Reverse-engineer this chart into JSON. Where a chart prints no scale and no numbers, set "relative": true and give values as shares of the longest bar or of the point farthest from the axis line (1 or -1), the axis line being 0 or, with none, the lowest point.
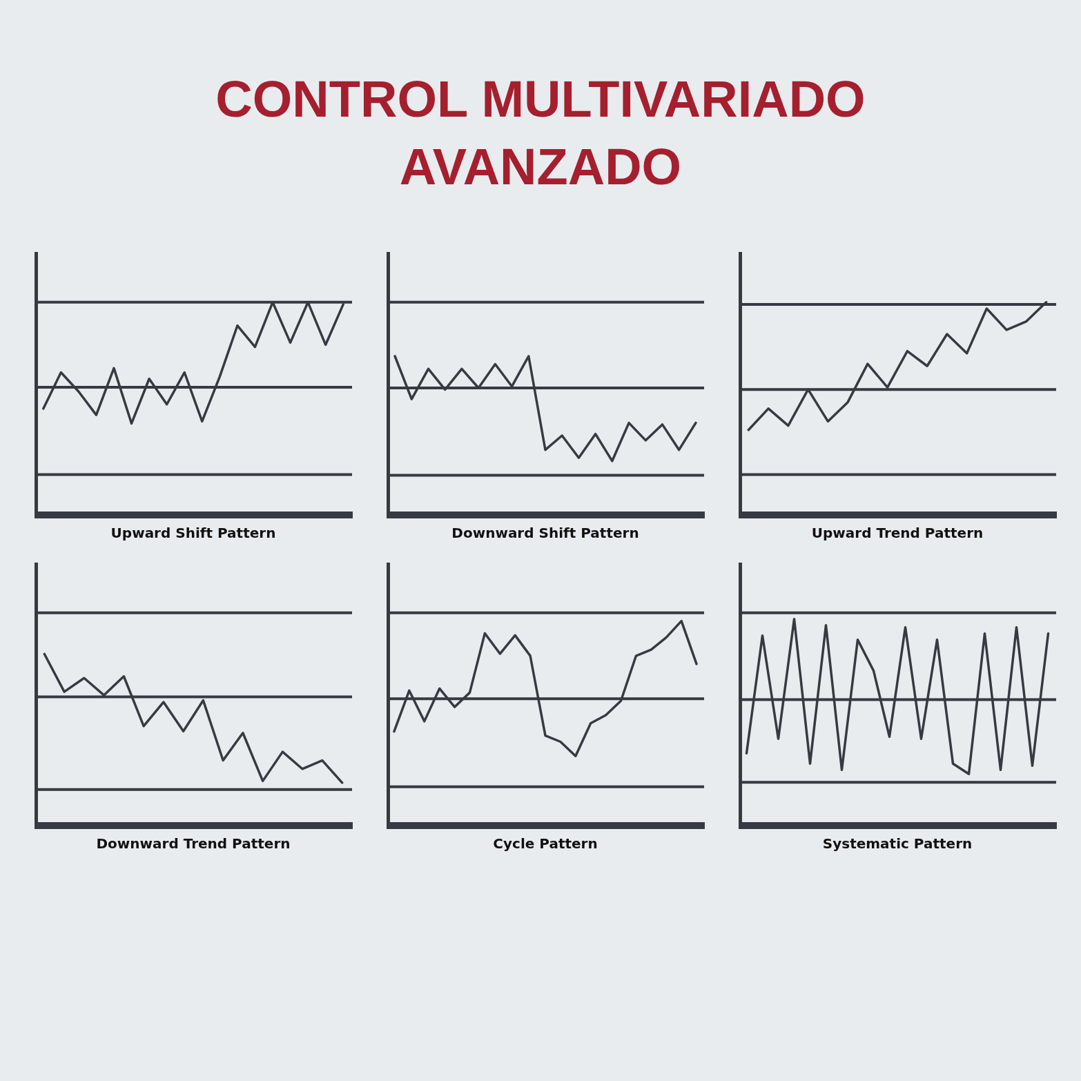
{
  "chart_data": [
    {
      "type": "line",
      "title": "CONTROL MULTIVARIADO AVANZADO",
      "xlabel": "Upward Shift Pattern",
      "relative": true,
      "categories": [
        null,
        null,
        null,
        null,
        null,
        null,
        null,
        null,
        null,
        null,
        null,
        null,
        null,
        null,
        null,
        null,
        null,
        null
      ],
      "series": [
        {
          "color": "#363a42",
          "values": [
            0.5,
            0.67,
            0.58,
            0.47,
            0.69,
            0.43,
            0.64,
            0.52,
            0.67,
            0.44,
            0.65,
            0.89,
            0.79,
            1.0,
            0.81,
            1.0,
            0.8,
            0.99
          ]
        }
      ],
      "ref_lines": [
        {
          "axis": "y",
          "value": 1.0,
          "color": "#363a42"
        },
        {
          "axis": "y",
          "value": 0.6,
          "color": "#363a42"
        },
        {
          "axis": "y",
          "value": 0.19,
          "color": "#363a42"
        }
      ]
    },
    {
      "type": "line",
      "xlabel": "Downward Shift Pattern",
      "relative": true,
      "categories": [
        null,
        null,
        null,
        null,
        null,
        null,
        null,
        null,
        null,
        null,
        null,
        null,
        null,
        null,
        null,
        null,
        null,
        null,
        null
      ],
      "series": [
        {
          "color": "#363a42",
          "values": [
            1.0,
            0.73,
            0.92,
            0.79,
            0.92,
            0.8,
            0.95,
            0.81,
            1.0,
            0.41,
            0.5,
            0.36,
            0.51,
            0.34,
            0.58,
            0.47,
            0.57,
            0.41,
            0.58
          ]
        }
      ],
      "ref_lines": [
        {
          "axis": "y",
          "value": 1.34,
          "color": "#363a42"
        },
        {
          "axis": "y",
          "value": 0.8,
          "color": "#363a42"
        },
        {
          "axis": "y",
          "value": 0.25,
          "color": "#363a42"
        }
      ]
    },
    {
      "type": "line",
      "xlabel": "Upward Trend Pattern",
      "relative": true,
      "categories": [
        null,
        null,
        null,
        null,
        null,
        null,
        null,
        null,
        null,
        null,
        null,
        null,
        null,
        null,
        null,
        null
      ],
      "series": [
        {
          "color": "#363a42",
          "values": [
            0.4,
            0.5,
            0.42,
            0.59,
            0.44,
            0.53,
            0.71,
            0.6,
            0.77,
            0.7,
            0.85,
            0.76,
            0.97,
            0.87,
            0.91,
            1.0
          ]
        }
      ],
      "ref_lines": [
        {
          "axis": "y",
          "value": 0.99,
          "color": "#363a42"
        },
        {
          "axis": "y",
          "value": 0.59,
          "color": "#363a42"
        },
        {
          "axis": "y",
          "value": 0.19,
          "color": "#363a42"
        }
      ]
    },
    {
      "type": "line",
      "xlabel": "Downward Trend Pattern",
      "relative": true,
      "categories": [
        null,
        null,
        null,
        null,
        null,
        null,
        null,
        null,
        null,
        null,
        null,
        null,
        null,
        null,
        null,
        null
      ],
      "series": [
        {
          "color": "#363a42",
          "values": [
            1.0,
            0.78,
            0.86,
            0.76,
            0.87,
            0.58,
            0.72,
            0.55,
            0.73,
            0.38,
            0.54,
            0.26,
            0.43,
            0.33,
            0.38,
            0.25
          ]
        }
      ],
      "ref_lines": [
        {
          "axis": "y",
          "value": 1.24,
          "color": "#363a42"
        },
        {
          "axis": "y",
          "value": 0.75,
          "color": "#363a42"
        },
        {
          "axis": "y",
          "value": 0.21,
          "color": "#363a42"
        }
      ]
    },
    {
      "type": "line",
      "xlabel": "Cycle Pattern",
      "relative": true,
      "categories": [
        null,
        null,
        null,
        null,
        null,
        null,
        null,
        null,
        null,
        null,
        null,
        null,
        null,
        null,
        null,
        null,
        null,
        null,
        null,
        null,
        null
      ],
      "series": [
        {
          "color": "#363a42",
          "values": [
            0.46,
            0.66,
            0.51,
            0.67,
            0.58,
            0.65,
            0.94,
            0.84,
            0.93,
            0.83,
            0.44,
            0.41,
            0.34,
            0.5,
            0.54,
            0.61,
            0.83,
            0.86,
            0.92,
            1.0,
            0.79
          ]
        }
      ],
      "ref_lines": [
        {
          "axis": "y",
          "value": 1.04,
          "color": "#363a42"
        },
        {
          "axis": "y",
          "value": 0.62,
          "color": "#363a42"
        },
        {
          "axis": "y",
          "value": 0.19,
          "color": "#363a42"
        }
      ]
    },
    {
      "type": "line",
      "xlabel": "Systematic Pattern",
      "relative": true,
      "categories": [
        null,
        null,
        null,
        null,
        null,
        null,
        null,
        null,
        null,
        null,
        null,
        null,
        null,
        null,
        null,
        null,
        null,
        null,
        null,
        null
      ],
      "series": [
        {
          "color": "#363a42",
          "values": [
            0.35,
            0.92,
            0.42,
            1.0,
            0.3,
            0.97,
            0.27,
            0.9,
            0.75,
            0.43,
            0.96,
            0.42,
            0.9,
            0.3,
            0.25,
            0.93,
            0.27,
            0.96,
            0.29,
            0.93
          ]
        }
      ],
      "ref_lines": [
        {
          "axis": "y",
          "value": 1.03,
          "color": "#363a42"
        },
        {
          "axis": "y",
          "value": 0.61,
          "color": "#363a42"
        },
        {
          "axis": "y",
          "value": 0.21,
          "color": "#363a42"
        }
      ]
    }
  ]
}
